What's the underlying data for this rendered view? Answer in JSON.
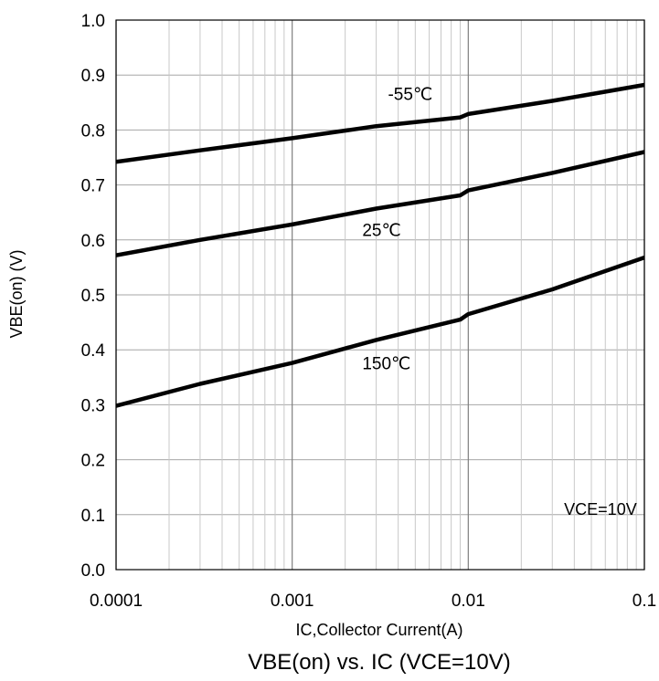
{
  "chart_data": {
    "type": "line",
    "title": "VBE(on) vs. IC (VCE=10V)",
    "xlabel": "IC,Collector Current(A)",
    "ylabel": "VBE(on) (V)",
    "x_scale": "log",
    "xlim": [
      0.0001,
      0.1
    ],
    "ylim": [
      0.0,
      1.0
    ],
    "grid": true,
    "x_ticks": [
      {
        "value": 0.0001,
        "label": "0.0001"
      },
      {
        "value": 0.001,
        "label": "0.001"
      },
      {
        "value": 0.01,
        "label": "0.01"
      },
      {
        "value": 0.1,
        "label": "0.1"
      }
    ],
    "y_ticks": [
      {
        "value": 0.0,
        "label": "0.0"
      },
      {
        "value": 0.1,
        "label": "0.1"
      },
      {
        "value": 0.2,
        "label": "0.2"
      },
      {
        "value": 0.3,
        "label": "0.3"
      },
      {
        "value": 0.4,
        "label": "0.4"
      },
      {
        "value": 0.5,
        "label": "0.5"
      },
      {
        "value": 0.6,
        "label": "0.6"
      },
      {
        "value": 0.7,
        "label": "0.7"
      },
      {
        "value": 0.8,
        "label": "0.8"
      },
      {
        "value": 0.9,
        "label": "0.9"
      },
      {
        "value": 1.0,
        "label": "1.0"
      }
    ],
    "series": [
      {
        "name": "-55℃",
        "label_at": {
          "x": 0.0035,
          "y": 0.855
        },
        "x": [
          0.0001,
          0.0003,
          0.001,
          0.003,
          0.009,
          0.01,
          0.03,
          0.1
        ],
        "y": [
          0.742,
          0.763,
          0.785,
          0.807,
          0.823,
          0.829,
          0.853,
          0.882
        ]
      },
      {
        "name": "25℃",
        "label_at": {
          "x": 0.0025,
          "y": 0.607
        },
        "x": [
          0.0001,
          0.0003,
          0.001,
          0.003,
          0.009,
          0.01,
          0.03,
          0.1
        ],
        "y": [
          0.572,
          0.6,
          0.628,
          0.657,
          0.681,
          0.69,
          0.722,
          0.76
        ]
      },
      {
        "name": "150℃",
        "label_at": {
          "x": 0.0025,
          "y": 0.365
        },
        "x": [
          0.0001,
          0.0003,
          0.001,
          0.003,
          0.009,
          0.01,
          0.03,
          0.1
        ],
        "y": [
          0.298,
          0.338,
          0.376,
          0.418,
          0.455,
          0.465,
          0.51,
          0.568
        ]
      }
    ],
    "annotations": [
      {
        "text": "VCE=10V",
        "x": 0.035,
        "y": 0.1
      }
    ]
  }
}
